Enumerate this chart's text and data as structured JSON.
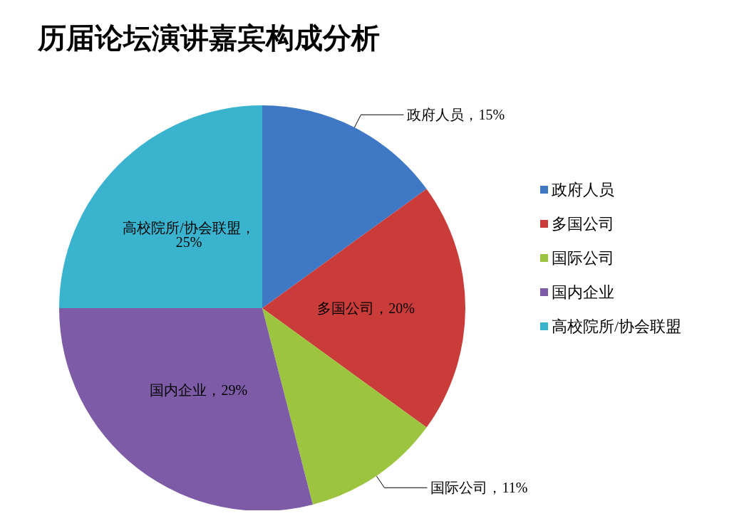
{
  "chart_data": {
    "type": "pie",
    "title": "历届论坛演讲嘉宾构成分析",
    "categories": [
      "政府人员",
      "多国公司",
      "国际公司",
      "国内企业",
      "高校院所/协会联盟"
    ],
    "values": [
      15,
      20,
      11,
      29,
      25
    ],
    "colors": [
      "#3f78c4",
      "#c93c3a",
      "#9cc43e",
      "#7e5ba6",
      "#3ab3cf"
    ],
    "value_labels": [
      "政府人员，15%",
      "多国公司，20%",
      "国际公司，11%",
      "国内企业，29%",
      "高校院所/协会联盟，25%"
    ],
    "legend": "right"
  }
}
